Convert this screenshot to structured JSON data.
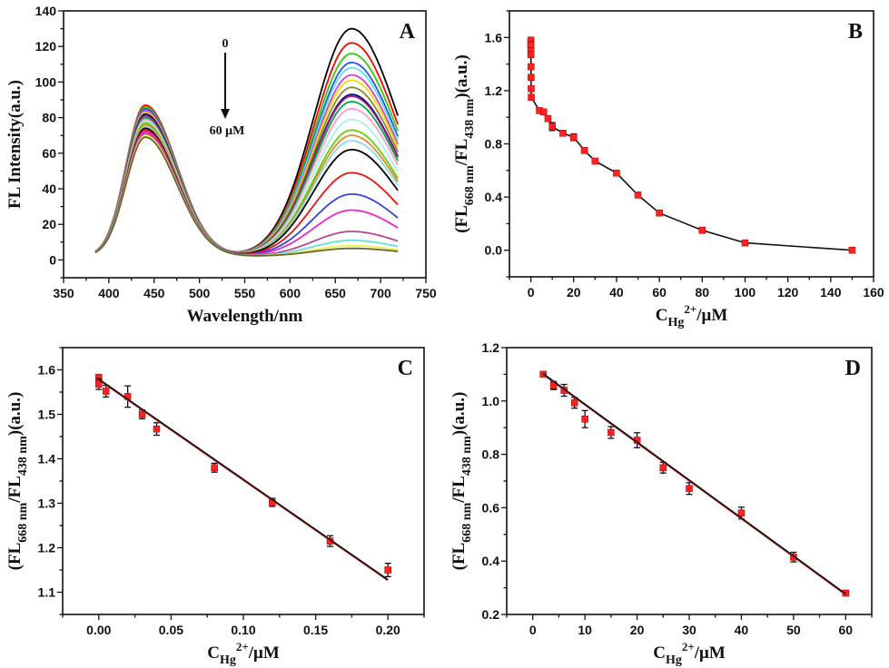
{
  "chart_data": [
    {
      "panel": "A",
      "type": "line",
      "xlabel": "Wavelength/nm",
      "ylabel": "FL Intensity(a.u.)",
      "xlim": [
        350,
        750
      ],
      "ylim": [
        -10,
        140
      ],
      "xticks": [
        350,
        400,
        450,
        500,
        550,
        600,
        650,
        700,
        750
      ],
      "xtick_labels": [
        "350",
        "400",
        "450",
        "500",
        "550",
        "600",
        "650",
        "700",
        "750"
      ],
      "yticks": [
        0,
        20,
        40,
        60,
        80,
        100,
        120,
        140
      ],
      "ytick_labels": [
        "0",
        "20",
        "40",
        "60",
        "80",
        "100",
        "120",
        "140"
      ],
      "x_range": [
        385,
        720
      ],
      "peak_wavelengths": [
        440,
        668
      ],
      "annotation": {
        "top": "0",
        "bottom": "60 μM"
      },
      "series": [
        {
          "color": "#000000",
          "peaks": [
            84,
            128
          ]
        },
        {
          "color": "#ff0000",
          "peaks": [
            87,
            120
          ]
        },
        {
          "color": "#33cc00",
          "peaks": [
            86,
            114
          ]
        },
        {
          "color": "#2255ee",
          "peaks": [
            85,
            109
          ]
        },
        {
          "color": "#66e0e0",
          "peaks": [
            84,
            106
          ]
        },
        {
          "color": "#cc44cc",
          "peaks": [
            84,
            102
          ]
        },
        {
          "color": "#eedd00",
          "peaks": [
            83,
            99
          ]
        },
        {
          "color": "#888833",
          "peaks": [
            82,
            95
          ]
        },
        {
          "color": "#000088",
          "peaks": [
            82,
            91
          ]
        },
        {
          "color": "#aa2277",
          "peaks": [
            81,
            90
          ]
        },
        {
          "color": "#00aa44",
          "peaks": [
            80,
            87
          ]
        },
        {
          "color": "#ff99cc",
          "peaks": [
            79,
            83
          ]
        },
        {
          "color": "#aaeeee",
          "peaks": [
            78,
            77
          ]
        },
        {
          "color": "#66cc00",
          "peaks": [
            77,
            71
          ]
        },
        {
          "color": "#dd8833",
          "peaks": [
            76,
            68
          ]
        },
        {
          "color": "#88dddd",
          "peaks": [
            75,
            65
          ]
        },
        {
          "color": "#000000",
          "peaks": [
            74,
            60
          ]
        },
        {
          "color": "#ee1111",
          "peaks": [
            73,
            47
          ]
        },
        {
          "color": "#3344dd",
          "peaks": [
            72,
            35
          ]
        },
        {
          "color": "#ee22cc",
          "peaks": [
            72,
            26
          ]
        },
        {
          "color": "#bb4499",
          "peaks": [
            71,
            14
          ]
        },
        {
          "color": "#66dddd",
          "peaks": [
            70,
            9
          ]
        },
        {
          "color": "#eeee44",
          "peaks": [
            70,
            6
          ]
        },
        {
          "color": "#666633",
          "peaks": [
            69,
            4.5
          ]
        }
      ],
      "panel_label": "A"
    },
    {
      "panel": "B",
      "type": "scatter",
      "connect": true,
      "xlabel": {
        "main": "C",
        "sub": "Hg",
        "sup": "2+",
        "unit": "/μM"
      },
      "ylabel": {
        "a": "(FL",
        "sub1": "668 nm",
        "b": "/FL",
        "sub2": "438 nm",
        "c": ")(a.u.)"
      },
      "xlim": [
        -10,
        160
      ],
      "ylim": [
        -0.2,
        1.8
      ],
      "xticks": [
        0,
        20,
        40,
        60,
        80,
        100,
        120,
        140,
        160
      ],
      "xtick_labels": [
        "0",
        "20",
        "40",
        "60",
        "80",
        "100",
        "120",
        "140",
        "160"
      ],
      "yticks": [
        0,
        0.4,
        0.8,
        1.2,
        1.6
      ],
      "ytick_labels": [
        "0.0",
        "0.4",
        "0.8",
        "1.2",
        "1.6"
      ],
      "x": [
        0,
        0.005,
        0.02,
        0.03,
        0.04,
        0.08,
        0.12,
        0.16,
        0.2,
        4,
        6,
        8,
        10,
        15,
        20,
        25,
        30,
        40,
        50,
        60,
        80,
        100,
        150
      ],
      "y": [
        1.58,
        1.55,
        1.54,
        1.5,
        1.47,
        1.38,
        1.3,
        1.215,
        1.15,
        1.05,
        1.04,
        0.99,
        0.93,
        0.88,
        0.85,
        0.75,
        0.67,
        0.58,
        0.415,
        0.28,
        0.15,
        0.055,
        0.0
      ],
      "err": [
        0.01,
        0.01,
        0.02,
        0.01,
        0.015,
        0.01,
        0.01,
        0.012,
        0.015,
        0.01,
        0.02,
        0.015,
        0.03,
        0.02,
        0.025,
        0.015,
        0.02,
        0.02,
        0.015,
        0.01,
        0.01,
        0.01,
        0.01
      ],
      "marker_color": "#ff2020",
      "panel_label": "B"
    },
    {
      "panel": "C",
      "type": "scatter",
      "fit_line": {
        "x": [
          0,
          0.2
        ],
        "y": [
          1.578,
          1.127
        ]
      },
      "xlabel": {
        "main": "C",
        "sub": "Hg",
        "sup": "2+",
        "unit": "/μM"
      },
      "ylabel": {
        "a": "(FL",
        "sub1": "668 nm",
        "b": "/FL",
        "sub2": "438 nm",
        "c": ")(a.u.)"
      },
      "xlim": [
        -0.025,
        0.225
      ],
      "ylim": [
        1.05,
        1.65
      ],
      "xticks": [
        0,
        0.05,
        0.1,
        0.15,
        0.2
      ],
      "xtick_labels": [
        "0.00",
        "0.05",
        "0.10",
        "0.15",
        "0.20"
      ],
      "yticks": [
        1.1,
        1.2,
        1.3,
        1.4,
        1.5,
        1.6
      ],
      "ytick_labels": [
        "1.1",
        "1.2",
        "1.3",
        "1.4",
        "1.5",
        "1.6"
      ],
      "x": [
        0,
        0,
        0.005,
        0.02,
        0.03,
        0.04,
        0.08,
        0.12,
        0.16,
        0.2
      ],
      "y": [
        1.583,
        1.568,
        1.552,
        1.54,
        1.5,
        1.467,
        1.38,
        1.302,
        1.215,
        1.15
      ],
      "err": [
        0.006,
        0.012,
        0.013,
        0.024,
        0.01,
        0.014,
        0.01,
        0.009,
        0.012,
        0.015
      ],
      "marker_color": "#ff2020",
      "panel_label": "C"
    },
    {
      "panel": "D",
      "type": "scatter",
      "fit_line": {
        "x": [
          2,
          60
        ],
        "y": [
          1.1,
          0.275
        ]
      },
      "xlabel": {
        "main": "C",
        "sub": "Hg",
        "sup": "2+",
        "unit": "/μM"
      },
      "ylabel": {
        "a": "(FL",
        "sub1": "668 nm",
        "b": "/FL",
        "sub2": "438 nm",
        "c": ")(a.u.)"
      },
      "xlim": [
        -5,
        65
      ],
      "ylim": [
        0.2,
        1.2
      ],
      "xticks": [
        0,
        10,
        20,
        30,
        40,
        50,
        60
      ],
      "xtick_labels": [
        "0",
        "10",
        "20",
        "30",
        "40",
        "50",
        "60"
      ],
      "yticks": [
        0.2,
        0.4,
        0.6,
        0.8,
        1.0,
        1.2
      ],
      "ytick_labels": [
        "0.2",
        "0.4",
        "0.6",
        "0.8",
        "1.0",
        "1.2"
      ],
      "x": [
        2,
        4,
        6,
        8,
        10,
        15,
        20,
        25,
        30,
        40,
        50,
        60
      ],
      "y": [
        1.1,
        1.058,
        1.04,
        0.993,
        0.932,
        0.882,
        0.853,
        0.75,
        0.672,
        0.58,
        0.415,
        0.28
      ],
      "err": [
        0.006,
        0.015,
        0.022,
        0.02,
        0.032,
        0.022,
        0.028,
        0.02,
        0.022,
        0.022,
        0.018,
        0.008
      ],
      "marker_color": "#ff2020",
      "panel_label": "D"
    }
  ]
}
